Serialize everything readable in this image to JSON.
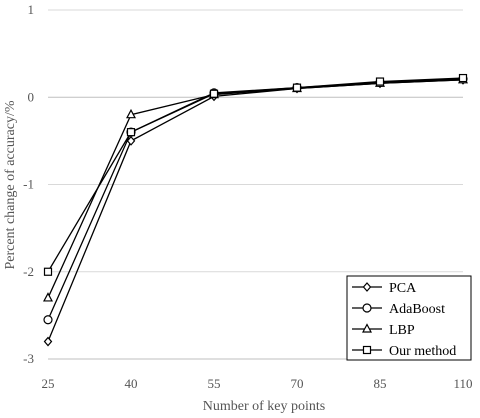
{
  "chart_data": {
    "type": "line",
    "title": "",
    "xlabel": "Number of key points",
    "ylabel": "Percent change of accuracy/%",
    "categories": [
      "25",
      "40",
      "55",
      "70",
      "85",
      "110"
    ],
    "ylim": [
      -3,
      1
    ],
    "yticks": [
      "1",
      "0",
      "-1",
      "-2",
      "-3"
    ],
    "grid": "horizontal",
    "legend_position": "bottom-right",
    "series": [
      {
        "name": "PCA",
        "marker": "diamond",
        "values": [
          -2.8,
          -0.5,
          0.01,
          0.1,
          0.16,
          0.2
        ]
      },
      {
        "name": "AdaBoost",
        "marker": "circle",
        "values": [
          -2.55,
          -0.4,
          0.05,
          0.11,
          0.17,
          0.21
        ]
      },
      {
        "name": "LBP",
        "marker": "triangle",
        "values": [
          -2.3,
          -0.2,
          0.03,
          0.1,
          0.16,
          0.2
        ]
      },
      {
        "name": "Our method",
        "marker": "square",
        "values": [
          -2.0,
          -0.4,
          0.04,
          0.11,
          0.18,
          0.22
        ]
      }
    ]
  }
}
